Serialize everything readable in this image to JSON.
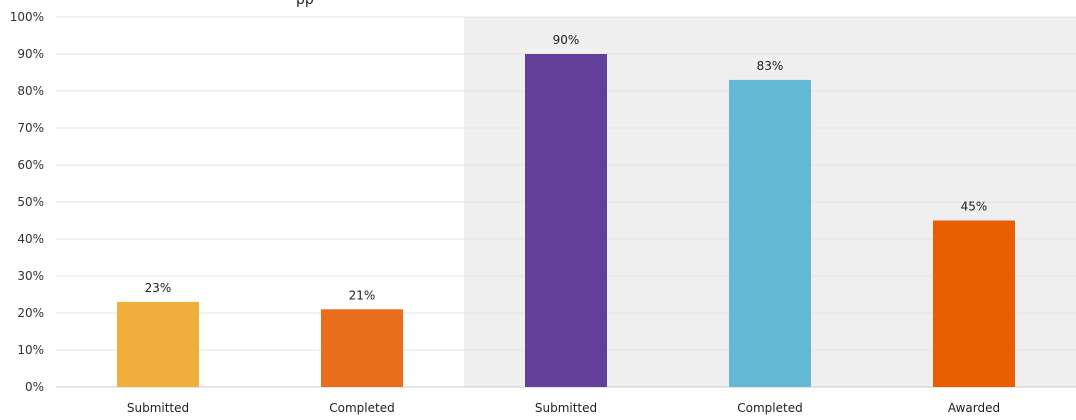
{
  "chart_data": {
    "type": "bar",
    "categories": [
      "Submitted",
      "Completed",
      "Submitted",
      "Completed",
      "Awarded"
    ],
    "values": [
      23,
      21,
      90,
      83,
      45
    ],
    "data_labels": [
      "23%",
      "21%",
      "90%",
      "83%",
      "45%"
    ],
    "ylim": [
      0,
      100
    ],
    "yticks": [
      "0%",
      "10%",
      "20%",
      "30%",
      "40%",
      "50%",
      "60%",
      "70%",
      "80%",
      "90%",
      "100%"
    ],
    "grid": true,
    "highlight_region": {
      "from_category_index": 2,
      "to_category_index": 4,
      "color": "#efefef"
    },
    "colors": [
      "#f0ae3a",
      "#e96d1c",
      "#633f99",
      "#63b8d3",
      "#e85e00"
    ],
    "title_fragment": "pp"
  }
}
